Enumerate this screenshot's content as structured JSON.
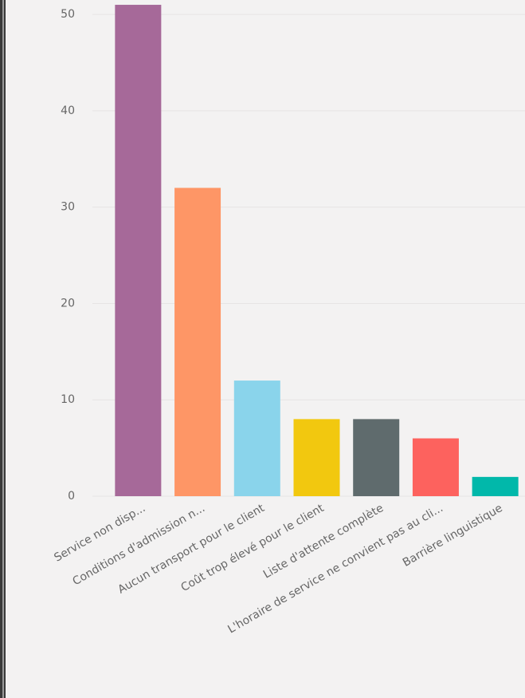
{
  "chart_data": {
    "type": "bar",
    "categories": [
      "Service non disp...",
      "Conditions d'admission n...",
      "Aucun transport pour le client",
      "Coût trop élevé pour le client",
      "Liste d'attente complète",
      "L'horaire de service ne convient pas au cli...",
      "Barrière linguistique"
    ],
    "values": [
      51,
      32,
      12,
      8,
      8,
      6,
      2
    ],
    "colors": [
      "#a66999",
      "#fe9666",
      "#8ad4eb",
      "#f2c80f",
      "#5f6b6d",
      "#fd625e",
      "#01b8aa"
    ],
    "ylim": [
      0,
      51.5
    ],
    "yticks": [
      0,
      10,
      20,
      30,
      40,
      50
    ],
    "grid": true
  }
}
